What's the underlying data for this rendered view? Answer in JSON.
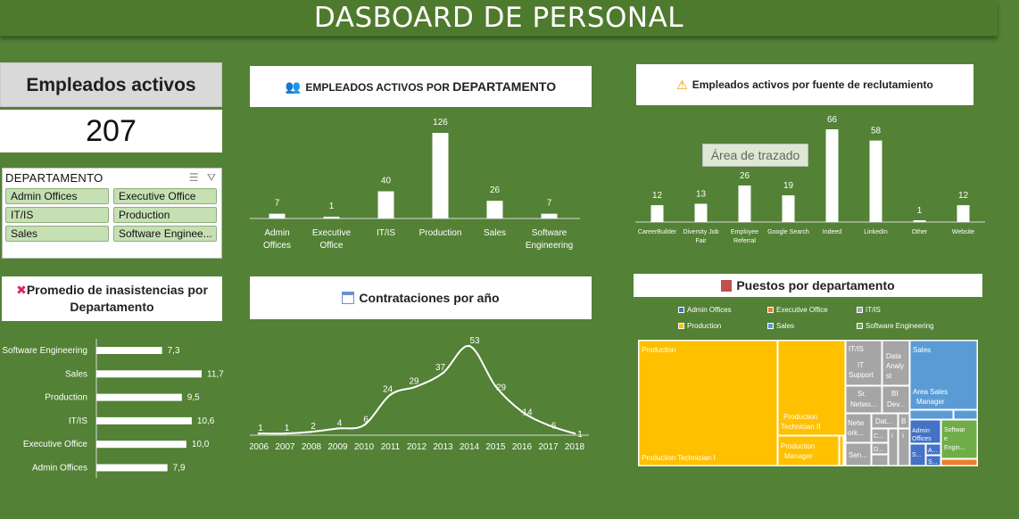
{
  "header": {
    "title": "DASBOARD DE PERSONAL"
  },
  "kpi": {
    "label": "Empleados activos",
    "value": "207"
  },
  "slicer": {
    "title": "DEPARTAMENTO",
    "icons": [
      "multi-select-icon",
      "clear-filter-icon"
    ],
    "items": [
      "Admin Offices",
      "Executive Office",
      "IT/IS",
      "Production",
      "Sales",
      "Software Enginee..."
    ]
  },
  "dept_chart": {
    "title_prefix": "EMPLEADOS ACTIVOS POR ",
    "title_bold": "DEPARTAMENTO",
    "icon": "people-icon"
  },
  "recruit_chart": {
    "title": "Empleados activos por fuente de reclutamiento",
    "icon": "warning-icon",
    "tooltip": "Área de trazado"
  },
  "absence_chart": {
    "title_line1": "Promedio de inasistencias por",
    "title_line2": "Departamento",
    "icon": "cross-mark-icon"
  },
  "hires_chart": {
    "title": "Contrataciones por año",
    "icon": "calendar-icon"
  },
  "treemap_chart": {
    "title": "Puestos por departamento",
    "icon": "building-icon",
    "legend": [
      {
        "name": "Admin Offices",
        "color": "#4472C4"
      },
      {
        "name": "Executive Office",
        "color": "#ED7D31"
      },
      {
        "name": "IT/IS",
        "color": "#A5A5A5"
      },
      {
        "name": "Production",
        "color": "#FFC000"
      },
      {
        "name": "Sales",
        "color": "#5B9BD5"
      },
      {
        "name": "Software Engineering",
        "color": "#70AD47"
      }
    ],
    "labels": {
      "production": "Production",
      "prod_tech1": "Production Technician I",
      "prod_tech2": "Production Technician II",
      "prod_mgr": "Production Manager",
      "itis": "IT/IS",
      "it_support": "IT Support",
      "data_analyst": "Data Analyst",
      "sr_network": "Sr. Netwo...",
      "bi_dev": "BI Dev...",
      "network": "Netw ork...",
      "dat": "Dat...",
      "b": "B",
      "c": "C...",
      "d": "D...",
      "i": "I",
      "sen": "Sen...",
      "sales": "Sales",
      "area_sales": "Area Sales Manager",
      "sales2": "Sales",
      "admin_offices": "Admin Offices",
      "software": "Softwar e Engin...",
      "a": "A...",
      "s": "S..."
    }
  },
  "chart_data": [
    {
      "type": "bar",
      "categories": [
        "Admin Offices",
        "Executive Office",
        "IT/IS",
        "Production",
        "Sales",
        "Software Engineering"
      ],
      "values": [
        7,
        1,
        40,
        126,
        26,
        7
      ]
    },
    {
      "type": "bar",
      "categories": [
        "CareerBuilder",
        "Diversity Job Fair",
        "Employee Referral",
        "Google Search",
        "Indeed",
        "LinkedIn",
        "Other",
        "Website"
      ],
      "values": [
        12,
        13,
        26,
        19,
        66,
        58,
        1,
        12
      ]
    },
    {
      "type": "bar",
      "orientation": "horizontal",
      "categories": [
        "Software Engineering",
        "Sales",
        "Production",
        "IT/IS",
        "Executive Office",
        "Admin Offices"
      ],
      "values": [
        7.3,
        11.7,
        9.5,
        10.6,
        10.0,
        7.9
      ],
      "value_labels": [
        "7,3",
        "11,7",
        "9,5",
        "10,6",
        "10,0",
        "7,9"
      ]
    },
    {
      "type": "line",
      "x": [
        2006,
        2007,
        2008,
        2009,
        2010,
        2011,
        2012,
        2013,
        2014,
        2015,
        2016,
        2017,
        2018
      ],
      "values": [
        1,
        1,
        2,
        4,
        6,
        24,
        29,
        37,
        53,
        29,
        14,
        6,
        1
      ]
    }
  ]
}
